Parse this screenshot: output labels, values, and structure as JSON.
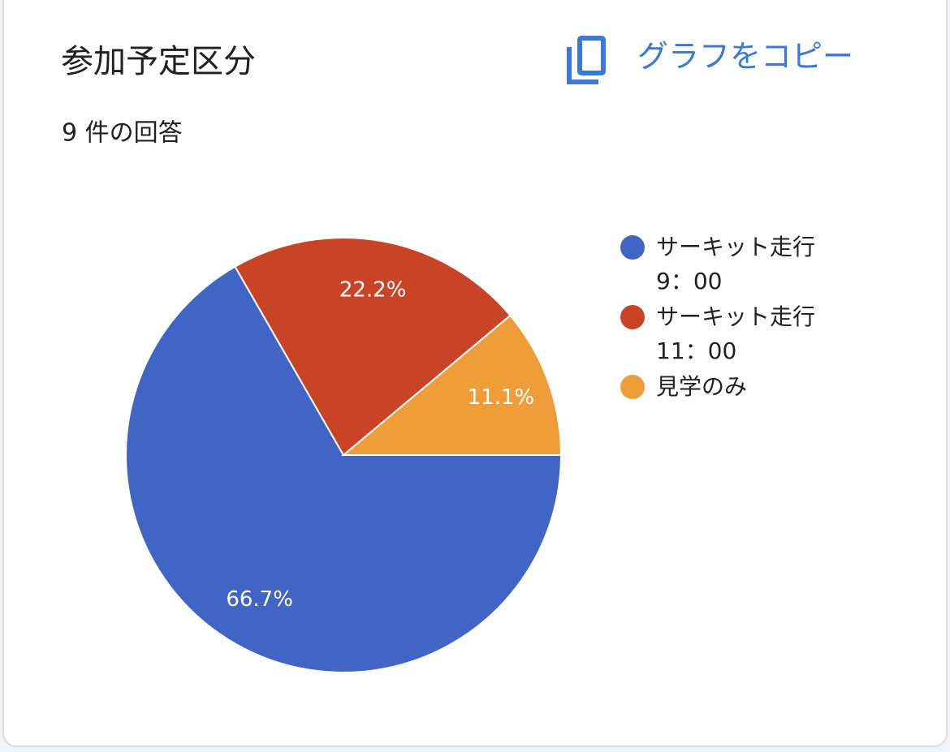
{
  "copy_button": "グラフをコピー",
  "chart_data": {
    "type": "pie",
    "title": "参加予定区分",
    "subtitle": "9 件の回答",
    "categories": [
      "サーキット走行 9：00",
      "サーキット走行 11：00",
      "見学のみ"
    ],
    "values": [
      66.7,
      22.2,
      11.1
    ],
    "value_labels": [
      "66.7%",
      "22.2%",
      "11.1%"
    ],
    "colors": [
      "#4065c4",
      "#c94426",
      "#ee9e39"
    ]
  }
}
